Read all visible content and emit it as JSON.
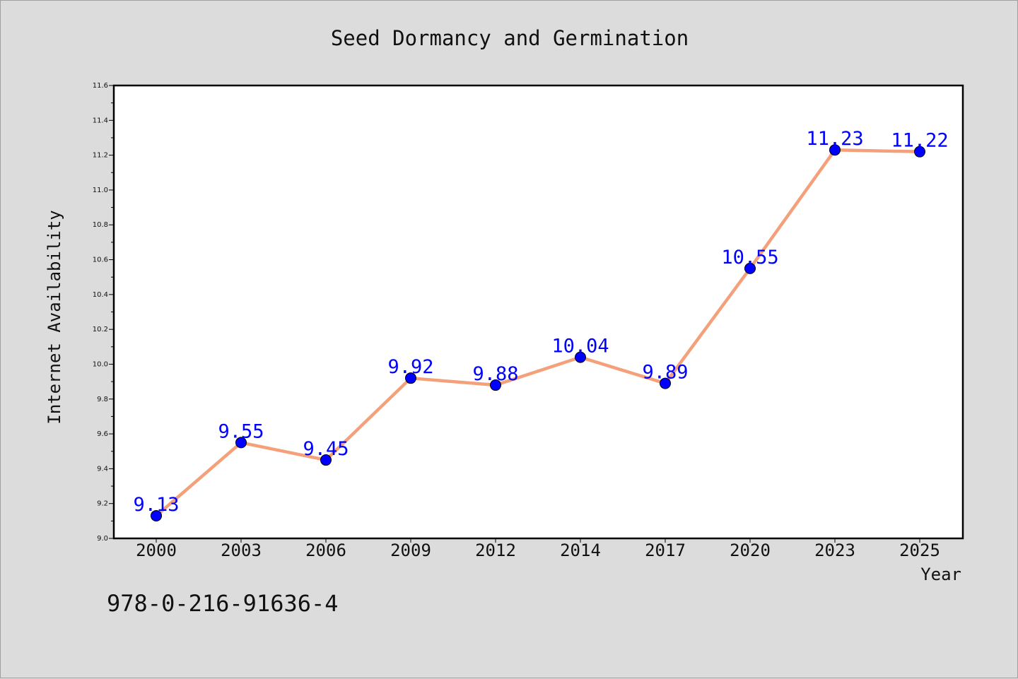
{
  "chart_data": {
    "type": "line",
    "title": "Seed Dormancy and Germination",
    "xlabel": "Year",
    "ylabel": "Internet Availability",
    "categories": [
      "2000",
      "2003",
      "2006",
      "2009",
      "2012",
      "2014",
      "2017",
      "2020",
      "2023",
      "2025"
    ],
    "series": [
      {
        "values": [
          9.13,
          9.55,
          9.45,
          9.92,
          9.88,
          10.04,
          9.89,
          10.55,
          11.23,
          11.22
        ],
        "line_color": "#f4a07a",
        "marker_color": "#0000ff"
      }
    ],
    "data_labels": [
      "9.13",
      "9.55",
      "9.45",
      "9.92",
      "9.88",
      "10.04",
      "9.89",
      "10.55",
      "11.23",
      "11.22"
    ],
    "ylim": [
      9.0,
      11.6
    ],
    "y_ticks": [
      "9.0",
      "9.2",
      "9.4",
      "9.6",
      "9.8",
      "10.0",
      "10.2",
      "10.4",
      "10.6",
      "10.8",
      "11.0",
      "11.2",
      "11.4",
      "11.6"
    ],
    "grid": false,
    "legend": "none"
  },
  "footer": {
    "isbn": "978-0-216-91636-4"
  }
}
